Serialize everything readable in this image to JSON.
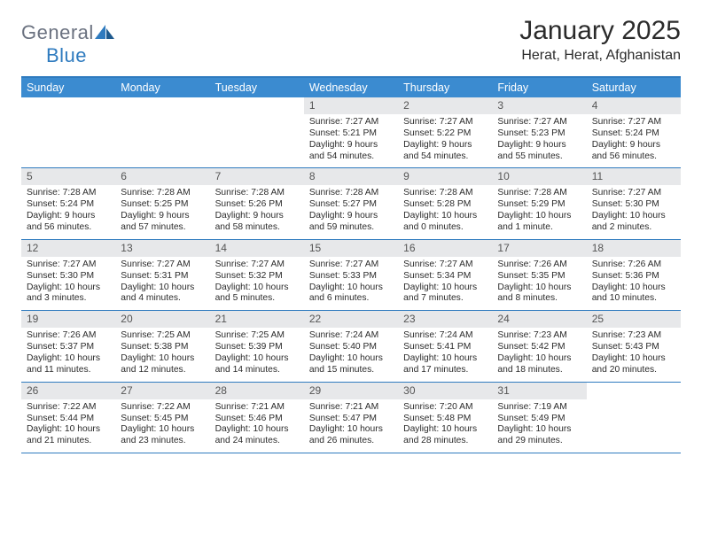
{
  "logo": {
    "text1": "General",
    "text2": "Blue"
  },
  "title": "January 2025",
  "subtitle": "Herat, Herat, Afghanistan",
  "colors": {
    "header_bg": "#3b8bd0",
    "border": "#2f7bbf",
    "daynum_bg": "#e7e8ea",
    "text": "#2b2b2b"
  },
  "day_names": [
    "Sunday",
    "Monday",
    "Tuesday",
    "Wednesday",
    "Thursday",
    "Friday",
    "Saturday"
  ],
  "weeks": [
    [
      {
        "empty": true
      },
      {
        "empty": true
      },
      {
        "empty": true
      },
      {
        "num": "1",
        "sunrise": "7:27 AM",
        "sunset": "5:21 PM",
        "daylight": "9 hours and 54 minutes."
      },
      {
        "num": "2",
        "sunrise": "7:27 AM",
        "sunset": "5:22 PM",
        "daylight": "9 hours and 54 minutes."
      },
      {
        "num": "3",
        "sunrise": "7:27 AM",
        "sunset": "5:23 PM",
        "daylight": "9 hours and 55 minutes."
      },
      {
        "num": "4",
        "sunrise": "7:27 AM",
        "sunset": "5:24 PM",
        "daylight": "9 hours and 56 minutes."
      }
    ],
    [
      {
        "num": "5",
        "sunrise": "7:28 AM",
        "sunset": "5:24 PM",
        "daylight": "9 hours and 56 minutes."
      },
      {
        "num": "6",
        "sunrise": "7:28 AM",
        "sunset": "5:25 PM",
        "daylight": "9 hours and 57 minutes."
      },
      {
        "num": "7",
        "sunrise": "7:28 AM",
        "sunset": "5:26 PM",
        "daylight": "9 hours and 58 minutes."
      },
      {
        "num": "8",
        "sunrise": "7:28 AM",
        "sunset": "5:27 PM",
        "daylight": "9 hours and 59 minutes."
      },
      {
        "num": "9",
        "sunrise": "7:28 AM",
        "sunset": "5:28 PM",
        "daylight": "10 hours and 0 minutes."
      },
      {
        "num": "10",
        "sunrise": "7:28 AM",
        "sunset": "5:29 PM",
        "daylight": "10 hours and 1 minute."
      },
      {
        "num": "11",
        "sunrise": "7:27 AM",
        "sunset": "5:30 PM",
        "daylight": "10 hours and 2 minutes."
      }
    ],
    [
      {
        "num": "12",
        "sunrise": "7:27 AM",
        "sunset": "5:30 PM",
        "daylight": "10 hours and 3 minutes."
      },
      {
        "num": "13",
        "sunrise": "7:27 AM",
        "sunset": "5:31 PM",
        "daylight": "10 hours and 4 minutes."
      },
      {
        "num": "14",
        "sunrise": "7:27 AM",
        "sunset": "5:32 PM",
        "daylight": "10 hours and 5 minutes."
      },
      {
        "num": "15",
        "sunrise": "7:27 AM",
        "sunset": "5:33 PM",
        "daylight": "10 hours and 6 minutes."
      },
      {
        "num": "16",
        "sunrise": "7:27 AM",
        "sunset": "5:34 PM",
        "daylight": "10 hours and 7 minutes."
      },
      {
        "num": "17",
        "sunrise": "7:26 AM",
        "sunset": "5:35 PM",
        "daylight": "10 hours and 8 minutes."
      },
      {
        "num": "18",
        "sunrise": "7:26 AM",
        "sunset": "5:36 PM",
        "daylight": "10 hours and 10 minutes."
      }
    ],
    [
      {
        "num": "19",
        "sunrise": "7:26 AM",
        "sunset": "5:37 PM",
        "daylight": "10 hours and 11 minutes."
      },
      {
        "num": "20",
        "sunrise": "7:25 AM",
        "sunset": "5:38 PM",
        "daylight": "10 hours and 12 minutes."
      },
      {
        "num": "21",
        "sunrise": "7:25 AM",
        "sunset": "5:39 PM",
        "daylight": "10 hours and 14 minutes."
      },
      {
        "num": "22",
        "sunrise": "7:24 AM",
        "sunset": "5:40 PM",
        "daylight": "10 hours and 15 minutes."
      },
      {
        "num": "23",
        "sunrise": "7:24 AM",
        "sunset": "5:41 PM",
        "daylight": "10 hours and 17 minutes."
      },
      {
        "num": "24",
        "sunrise": "7:23 AM",
        "sunset": "5:42 PM",
        "daylight": "10 hours and 18 minutes."
      },
      {
        "num": "25",
        "sunrise": "7:23 AM",
        "sunset": "5:43 PM",
        "daylight": "10 hours and 20 minutes."
      }
    ],
    [
      {
        "num": "26",
        "sunrise": "7:22 AM",
        "sunset": "5:44 PM",
        "daylight": "10 hours and 21 minutes."
      },
      {
        "num": "27",
        "sunrise": "7:22 AM",
        "sunset": "5:45 PM",
        "daylight": "10 hours and 23 minutes."
      },
      {
        "num": "28",
        "sunrise": "7:21 AM",
        "sunset": "5:46 PM",
        "daylight": "10 hours and 24 minutes."
      },
      {
        "num": "29",
        "sunrise": "7:21 AM",
        "sunset": "5:47 PM",
        "daylight": "10 hours and 26 minutes."
      },
      {
        "num": "30",
        "sunrise": "7:20 AM",
        "sunset": "5:48 PM",
        "daylight": "10 hours and 28 minutes."
      },
      {
        "num": "31",
        "sunrise": "7:19 AM",
        "sunset": "5:49 PM",
        "daylight": "10 hours and 29 minutes."
      },
      {
        "empty": true
      }
    ]
  ],
  "labels": {
    "sunrise": "Sunrise: ",
    "sunset": "Sunset: ",
    "daylight": "Daylight: "
  }
}
